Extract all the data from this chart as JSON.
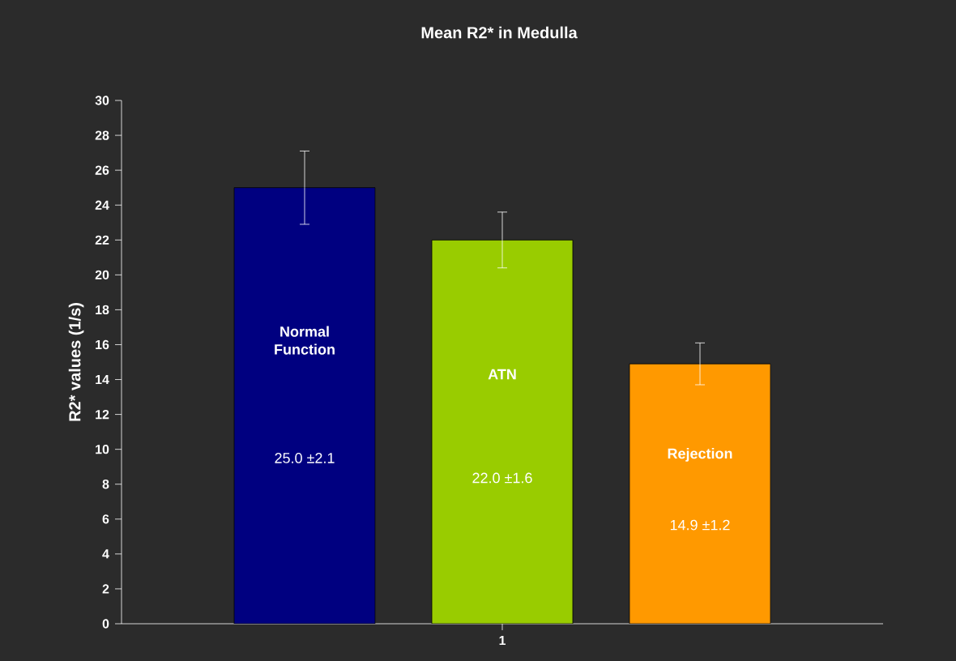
{
  "chart_data": {
    "type": "bar",
    "title": "Mean R2* in Medulla",
    "ylabel": "R2* values (1/s)",
    "categories": [
      "1"
    ],
    "series": [
      {
        "name": "Normal Function",
        "color": "#000080",
        "values": [
          25.0
        ],
        "errors": [
          2.1
        ],
        "value_labels": [
          "25.0 ±2.1"
        ]
      },
      {
        "name": "ATN",
        "color": "#99cc00",
        "values": [
          22.0
        ],
        "errors": [
          1.6
        ],
        "value_labels": [
          "22.0 ±1.6"
        ]
      },
      {
        "name": "Rejection",
        "color": "#ff9900",
        "values": [
          14.9
        ],
        "errors": [
          1.2
        ],
        "value_labels": [
          "14.9 ±1.2"
        ]
      }
    ],
    "ylim": [
      0,
      30
    ],
    "yticks": [
      0,
      2,
      4,
      6,
      8,
      10,
      12,
      14,
      16,
      18,
      20,
      22,
      24,
      26,
      28,
      30
    ],
    "grid": false
  }
}
